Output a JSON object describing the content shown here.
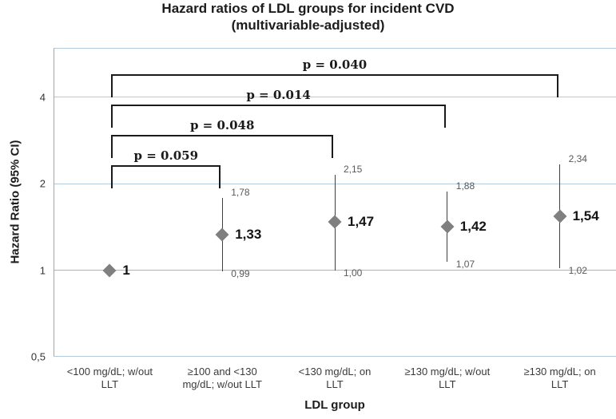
{
  "title": {
    "line1": "Hazard ratios of LDL groups for incident CVD",
    "line2": "(multivariable-adjusted)"
  },
  "axes": {
    "y_title": "Hazard Ratio (95% CI)",
    "x_title": "LDL group"
  },
  "chart_data": {
    "type": "scatter",
    "subtype": "forest-plot",
    "title": "Hazard ratios of LDL groups for incident CVD (multivariable-adjusted)",
    "xlabel": "LDL group",
    "ylabel": "Hazard Ratio (95% CI)",
    "y_scale": "log2",
    "ylim": [
      0.5,
      5.94
    ],
    "grid": "horizontal-major",
    "legend": "none",
    "yticks": [
      {
        "value": 4,
        "label": "4"
      },
      {
        "value": 2,
        "label": "2"
      },
      {
        "value": 1,
        "label": "1"
      },
      {
        "value": 0.5,
        "label": "0,5"
      }
    ],
    "groups": [
      {
        "category": "<100 mg/dL; w/out\nLLT",
        "hr": 1.0,
        "hr_label": "1",
        "ci_low": null,
        "ci_high": null,
        "ci_low_label": null,
        "ci_high_label": null
      },
      {
        "category": "≥100 and <130\nmg/dL; w/out LLT",
        "hr": 1.33,
        "hr_label": "1,33",
        "ci_low": 0.99,
        "ci_high": 1.78,
        "ci_low_label": "0,99",
        "ci_high_label": "1,78"
      },
      {
        "category": "<130 mg/dL; on\nLLT",
        "hr": 1.47,
        "hr_label": "1,47",
        "ci_low": 1.0,
        "ci_high": 2.15,
        "ci_low_label": "1,00",
        "ci_high_label": "2,15"
      },
      {
        "category": "≥130 mg/dL; w/out\nLLT",
        "hr": 1.42,
        "hr_label": "1,42",
        "ci_low": 1.07,
        "ci_high": 1.88,
        "ci_low_label": "1,07",
        "ci_high_label": "1,88"
      },
      {
        "category": "≥130 mg/dL; on\nLLT",
        "hr": 1.54,
        "hr_label": "1,54",
        "ci_low": 1.02,
        "ci_high": 2.34,
        "ci_low_label": "1,02",
        "ci_high_label": "2,34"
      }
    ],
    "comparisons": [
      {
        "label": "p = 0.040",
        "from": 0,
        "to": 4
      },
      {
        "label": "p = 0.014",
        "from": 0,
        "to": 3
      },
      {
        "label": "p = 0.048",
        "from": 0,
        "to": 2
      },
      {
        "label": "p = 0.059",
        "from": 0,
        "to": 1
      }
    ],
    "colors": {
      "marker": "#7f7f7f",
      "whisker": "#404040",
      "bracket": "#1a1a1a",
      "grid_major": "#b3cadd",
      "grid_baseline": "#b2b2b2",
      "axis_line": "#a6a6a6",
      "ci_text": "#595959",
      "text": "#1c1c1c"
    }
  }
}
